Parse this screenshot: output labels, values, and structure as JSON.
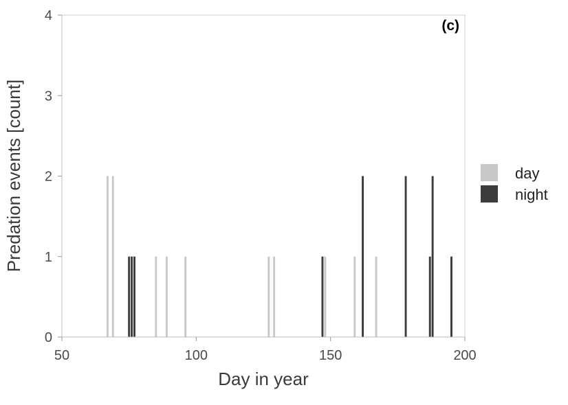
{
  "chart_data": {
    "type": "bar",
    "subtype": "histogram",
    "panel_label": "(c)",
    "xlabel": "Day in year",
    "ylabel": "Predation events [count]",
    "xlim": [
      50,
      200
    ],
    "ylim": [
      0,
      4
    ],
    "xticks": [
      50,
      100,
      150,
      200
    ],
    "yticks": [
      0,
      1,
      2,
      3,
      4
    ],
    "grid": false,
    "bin_width": 1,
    "legend_position": "right",
    "series": [
      {
        "name": "day",
        "color": "#c8c8c8",
        "points": [
          {
            "x": 67,
            "y": 2
          },
          {
            "x": 69,
            "y": 2
          },
          {
            "x": 85,
            "y": 1
          },
          {
            "x": 89,
            "y": 1
          },
          {
            "x": 96,
            "y": 1
          },
          {
            "x": 127,
            "y": 1
          },
          {
            "x": 129,
            "y": 1
          },
          {
            "x": 148,
            "y": 1
          },
          {
            "x": 159,
            "y": 1
          },
          {
            "x": 167,
            "y": 1
          }
        ]
      },
      {
        "name": "night",
        "color": "#3c3c3c",
        "points": [
          {
            "x": 75,
            "y": 1
          },
          {
            "x": 76,
            "y": 1
          },
          {
            "x": 77,
            "y": 1
          },
          {
            "x": 147,
            "y": 1
          },
          {
            "x": 162,
            "y": 2
          },
          {
            "x": 178,
            "y": 2
          },
          {
            "x": 187,
            "y": 1
          },
          {
            "x": 188,
            "y": 2
          },
          {
            "x": 195,
            "y": 1
          }
        ]
      }
    ]
  }
}
